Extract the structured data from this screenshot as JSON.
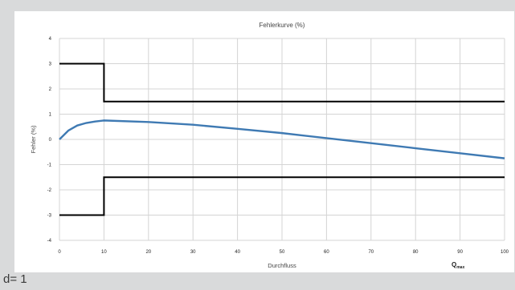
{
  "chart_data": {
    "type": "line",
    "title": "Fehlerkurve (%)",
    "xlabel": "Durchfluss",
    "ylabel": "Fehler (%)",
    "xlim": [
      0,
      100
    ],
    "ylim": [
      -4,
      4
    ],
    "x_ticks": [
      0,
      10,
      20,
      30,
      40,
      50,
      60,
      70,
      80,
      90,
      100
    ],
    "y_ticks": [
      4,
      3,
      2,
      1,
      0,
      -1,
      -2,
      -3,
      -4
    ],
    "grid": true,
    "x_annotation": {
      "main": "Q",
      "sub": "max"
    },
    "series": [
      {
        "color": "#000000",
        "x": [
          0,
          10,
          10,
          100
        ],
        "y": [
          3,
          3,
          1.5,
          1.5
        ]
      },
      {
        "color": "#000000",
        "x": [
          0,
          10,
          10,
          100
        ],
        "y": [
          -3,
          -3,
          -1.5,
          -1.5
        ]
      },
      {
        "color": "#3f7ab3",
        "x": [
          0,
          2,
          4,
          6,
          8,
          10,
          20,
          30,
          40,
          50,
          60,
          70,
          80,
          90,
          100
        ],
        "y": [
          0,
          0.35,
          0.55,
          0.65,
          0.71,
          0.75,
          0.69,
          0.58,
          0.42,
          0.25,
          0.05,
          -0.15,
          -0.35,
          -0.55,
          -0.75
        ]
      }
    ]
  },
  "caption": "d= 1"
}
